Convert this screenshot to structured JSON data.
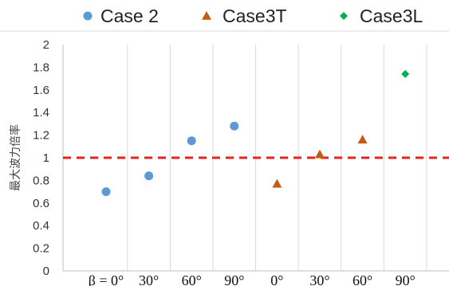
{
  "chart_data": {
    "type": "scatter",
    "title": "",
    "ylabel": "最大波力倍率",
    "xlabel": "",
    "ylim": [
      0,
      2
    ],
    "y_ticks": [
      "0",
      "0.2",
      "0.4",
      "0.6",
      "0.8",
      "1",
      "1.2",
      "1.4",
      "1.6",
      "1.8",
      "2"
    ],
    "categories": [
      "β = 0°",
      "30°",
      "60°",
      "90°",
      "0°",
      "30°",
      "60°",
      "90°"
    ],
    "grid": "vertical",
    "legend_position": "top",
    "reference_line": {
      "y": 1.0,
      "style": "dashed",
      "color": "#e8231c"
    },
    "series": [
      {
        "name": "Case 2",
        "marker": "circle",
        "color": "#5b9bd5",
        "points": [
          {
            "x": 0,
            "y": 0.7
          },
          {
            "x": 1,
            "y": 0.84
          },
          {
            "x": 2,
            "y": 1.15
          },
          {
            "x": 3,
            "y": 1.28
          }
        ]
      },
      {
        "name": "Case3T",
        "marker": "triangle",
        "color": "#c55a11",
        "points": [
          {
            "x": 4,
            "y": 0.77
          },
          {
            "x": 5,
            "y": 1.03
          },
          {
            "x": 6,
            "y": 1.16
          }
        ]
      },
      {
        "name": "Case3L",
        "marker": "diamond",
        "color": "#00b050",
        "points": [
          {
            "x": 7,
            "y": 1.74
          }
        ]
      }
    ]
  }
}
